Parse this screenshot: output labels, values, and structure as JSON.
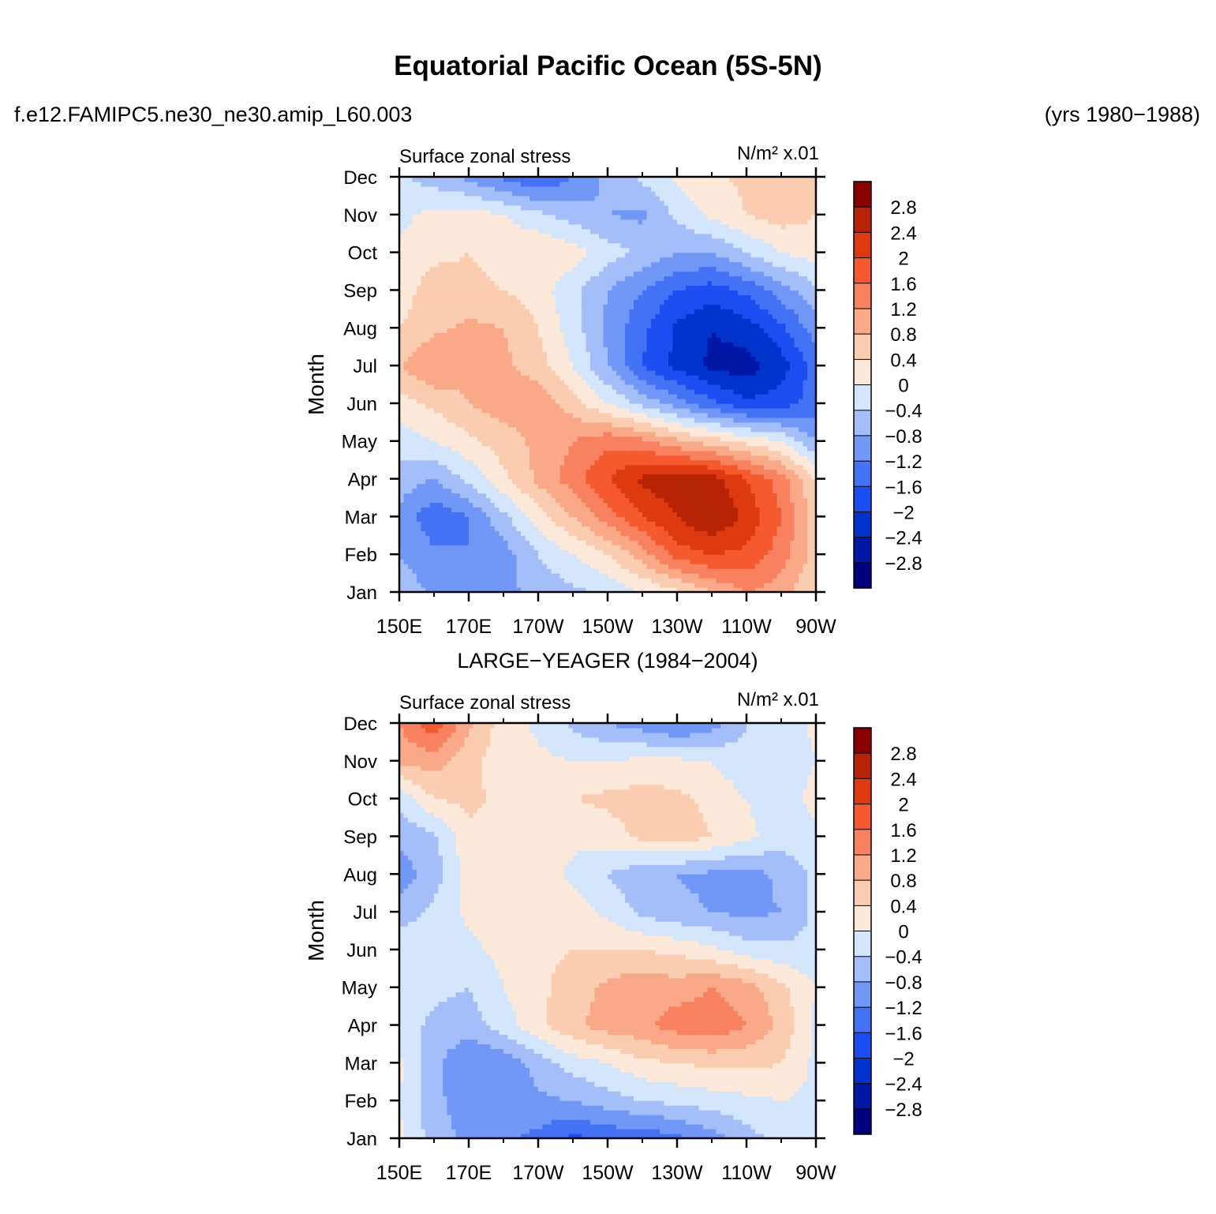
{
  "figure": {
    "title": "Equatorial Pacific Ocean (5S-5N)",
    "run_name": "f.e12.FAMIPC5.ne30_ne30.amip_L60.003",
    "years": "(yrs 1980−1988)",
    "second_panel_title": "LARGE−YEAGER (1984−2004)"
  },
  "colors": {
    "levels": [
      "#00007f",
      "#0016a5",
      "#0033cc",
      "#1a4ef0",
      "#4472f5",
      "#7198f7",
      "#a3bef9",
      "#d3e6fb",
      "#fde9da",
      "#fbcdb0",
      "#f9a987",
      "#f8815f",
      "#f45a2e",
      "#de3a0f",
      "#b72405",
      "#8a0000"
    ]
  },
  "chart_data": [
    {
      "type": "heatmap",
      "panel_label": "Surface zonal stress",
      "units": "N/m² x.01",
      "ylabel": "Month",
      "xlabel": "",
      "x_tick_labels": [
        "150E",
        "170E",
        "170W",
        "150W",
        "130W",
        "110W",
        "90W"
      ],
      "x_tick_values": [
        150,
        170,
        190,
        210,
        230,
        250,
        270
      ],
      "xlim": [
        150,
        270
      ],
      "y_tick_labels": [
        "Jan",
        "Feb",
        "Mar",
        "Apr",
        "May",
        "Jun",
        "Jul",
        "Aug",
        "Sep",
        "Oct",
        "Nov",
        "Dec"
      ],
      "ylim": [
        1,
        12
      ],
      "colorbar_labels": [
        "2.8",
        "2.4",
        "2",
        "1.6",
        "1.2",
        "0.8",
        "0.4",
        "0",
        "−0.4",
        "−0.8",
        "−1.2",
        "−1.6",
        "−2",
        "−2.4",
        "−2.8"
      ],
      "colorbar_levels": [
        -2.8,
        -2.4,
        -2.0,
        -1.6,
        -1.2,
        -0.8,
        -0.4,
        0,
        0.4,
        0.8,
        1.2,
        1.6,
        2.0,
        2.4,
        2.8
      ],
      "x": [
        150,
        160,
        170,
        180,
        190,
        200,
        210,
        220,
        230,
        240,
        250,
        260,
        270
      ],
      "values": [
        [
          -0.5,
          -0.9,
          -1.0,
          -0.9,
          -0.7,
          -0.5,
          -0.3,
          0.0,
          0.3,
          0.8,
          1.2,
          1.0,
          0.4
        ],
        [
          -0.8,
          -1.1,
          -1.2,
          -1.0,
          -0.4,
          0.0,
          0.4,
          1.0,
          1.8,
          2.0,
          1.9,
          1.4,
          0.6
        ],
        [
          -0.9,
          -1.5,
          -1.2,
          -0.5,
          0.2,
          0.8,
          1.4,
          2.0,
          2.4,
          2.8,
          2.3,
          1.6,
          0.6
        ],
        [
          -0.6,
          -0.8,
          -0.3,
          0.3,
          0.9,
          1.4,
          2.0,
          2.5,
          2.7,
          2.6,
          2.0,
          1.4,
          0.4
        ],
        [
          -0.2,
          0.0,
          0.3,
          0.6,
          0.9,
          1.2,
          1.5,
          1.3,
          0.9,
          0.6,
          0.3,
          0.0,
          -0.8
        ],
        [
          0.2,
          0.5,
          0.8,
          1.0,
          1.1,
          0.6,
          0.0,
          -0.5,
          -1.0,
          -1.5,
          -1.9,
          -1.8,
          -1.4
        ],
        [
          0.8,
          1.2,
          0.9,
          0.9,
          0.6,
          0.0,
          -0.8,
          -1.6,
          -2.1,
          -2.5,
          -2.6,
          -2.2,
          -1.4
        ],
        [
          0.4,
          0.7,
          0.9,
          0.8,
          0.4,
          -0.2,
          -0.9,
          -1.5,
          -2.1,
          -2.4,
          -2.2,
          -1.7,
          -1.0
        ],
        [
          0.2,
          0.6,
          0.5,
          0.4,
          0.2,
          -0.3,
          -0.8,
          -1.2,
          -1.6,
          -1.8,
          -1.5,
          -1.0,
          -0.5
        ],
        [
          0.1,
          0.3,
          0.4,
          0.3,
          0.4,
          0.2,
          -0.2,
          -0.5,
          -0.8,
          -0.8,
          -0.4,
          0.0,
          0.2
        ],
        [
          -0.1,
          0.1,
          0.2,
          0.0,
          -0.3,
          -0.6,
          -0.8,
          -0.9,
          -0.3,
          0.1,
          0.4,
          0.6,
          0.4
        ],
        [
          -0.3,
          -0.6,
          -0.9,
          -1.3,
          -1.6,
          -1.2,
          -0.7,
          -0.3,
          0.1,
          0.3,
          0.5,
          0.6,
          0.4
        ]
      ]
    },
    {
      "type": "heatmap",
      "panel_label": "Surface zonal stress",
      "units": "N/m² x.01",
      "ylabel": "Month",
      "xlabel": "",
      "x_tick_labels": [
        "150E",
        "170E",
        "170W",
        "150W",
        "130W",
        "110W",
        "90W"
      ],
      "x_tick_values": [
        150,
        170,
        190,
        210,
        230,
        250,
        270
      ],
      "xlim": [
        150,
        270
      ],
      "y_tick_labels": [
        "Jan",
        "Feb",
        "Mar",
        "Apr",
        "May",
        "Jun",
        "Jul",
        "Aug",
        "Sep",
        "Oct",
        "Nov",
        "Dec"
      ],
      "ylim": [
        1,
        12
      ],
      "colorbar_labels": [
        "2.8",
        "2.4",
        "2",
        "1.6",
        "1.2",
        "0.8",
        "0.4",
        "0",
        "−0.4",
        "−0.8",
        "−1.2",
        "−1.6",
        "−2",
        "−2.4",
        "−2.8"
      ],
      "colorbar_levels": [
        -2.8,
        -2.4,
        -2.0,
        -1.6,
        -1.2,
        -0.8,
        -0.4,
        0,
        0.4,
        0.8,
        1.2,
        1.6,
        2.0,
        2.4,
        2.8
      ],
      "x": [
        150,
        160,
        170,
        180,
        190,
        200,
        210,
        220,
        230,
        240,
        250,
        260,
        270
      ],
      "values": [
        [
          0.1,
          -0.6,
          -0.9,
          -1.1,
          -1.3,
          -1.7,
          -1.5,
          -1.5,
          -1.3,
          -1.0,
          -0.6,
          -0.2,
          -0.2
        ],
        [
          0.0,
          -0.7,
          -1.0,
          -1.2,
          -0.9,
          -0.8,
          -0.6,
          -0.4,
          -0.3,
          -0.2,
          -0.1,
          0.0,
          -0.1
        ],
        [
          0.1,
          -0.7,
          -1.2,
          -1.1,
          -0.6,
          -0.2,
          0.0,
          0.3,
          0.4,
          0.5,
          0.5,
          0.4,
          -0.1
        ],
        [
          -0.2,
          -0.5,
          -0.6,
          -0.2,
          0.3,
          0.7,
          1.0,
          1.1,
          1.4,
          1.5,
          1.2,
          0.7,
          -0.1
        ],
        [
          -0.1,
          -0.3,
          -0.4,
          0.0,
          0.3,
          0.6,
          0.9,
          1.1,
          1.0,
          1.2,
          1.0,
          0.5,
          0.0
        ],
        [
          -0.1,
          -0.2,
          -0.1,
          0.1,
          0.3,
          0.4,
          0.4,
          0.4,
          0.3,
          0.1,
          -0.2,
          -0.3,
          -0.3
        ],
        [
          -0.6,
          -0.3,
          0.1,
          0.3,
          0.3,
          0.2,
          -0.1,
          -0.5,
          -0.7,
          -0.8,
          -0.9,
          -0.8,
          -0.3
        ],
        [
          -1.0,
          -0.6,
          0.2,
          0.3,
          0.2,
          -0.1,
          -0.4,
          -0.7,
          -0.8,
          -0.9,
          -1.0,
          -0.7,
          -0.3
        ],
        [
          -0.7,
          -0.5,
          0.3,
          0.3,
          0.3,
          0.1,
          0.2,
          0.5,
          0.6,
          0.4,
          0.1,
          -0.2,
          -0.2
        ],
        [
          -0.3,
          0.4,
          0.5,
          0.3,
          0.3,
          0.4,
          0.5,
          0.6,
          0.5,
          0.3,
          0.0,
          -0.3,
          0.2
        ],
        [
          0.9,
          1.0,
          0.5,
          0.2,
          0.1,
          0.0,
          0.0,
          0.1,
          0.1,
          0.0,
          -0.3,
          -0.4,
          0.0
        ],
        [
          1.2,
          1.9,
          0.9,
          0.2,
          -0.1,
          -0.5,
          -0.8,
          -1.0,
          -1.3,
          -1.0,
          -0.4,
          -0.2,
          0.1
        ]
      ]
    }
  ]
}
